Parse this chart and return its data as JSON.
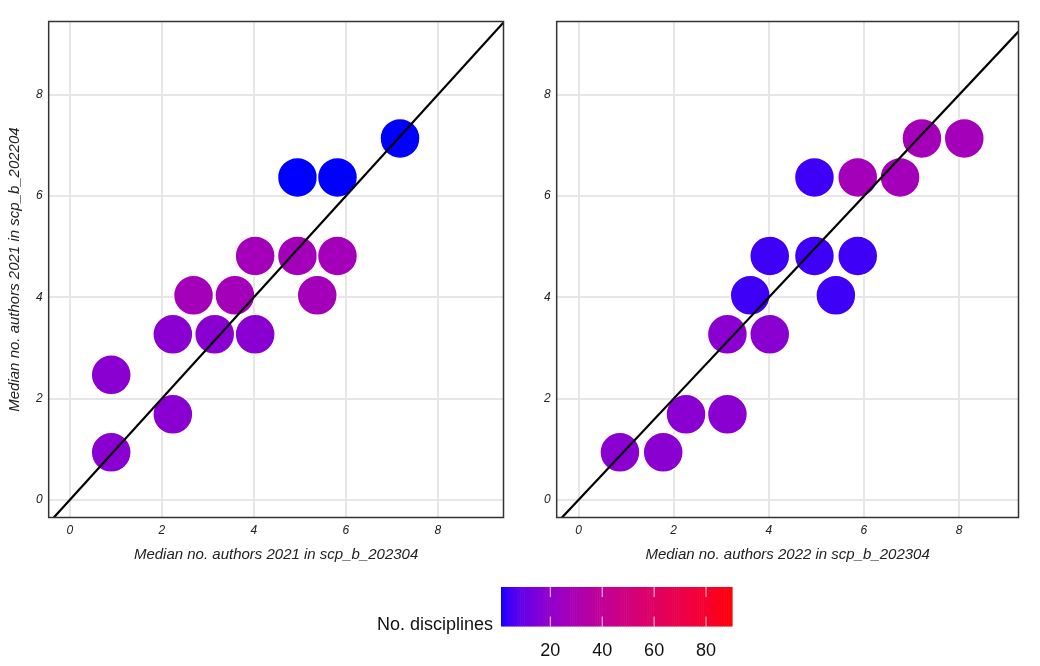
{
  "chart_data": [
    {
      "type": "scatter",
      "xlabel": "Median no. authors 2021 in scp_b_202304",
      "ylabel": "Median no. authors 2021 in scp_b_202204",
      "clabel": "No. disciplines",
      "clim": [
        1,
        90
      ],
      "cticks": [
        20,
        40,
        60,
        80
      ],
      "xlim": [
        -0.46,
        9.43
      ],
      "ylim": [
        -0.35,
        9.45
      ],
      "xticks": [
        0,
        2,
        4,
        6,
        8
      ],
      "yticks": [
        0,
        2,
        4,
        6,
        8
      ],
      "grid": true,
      "legend": false,
      "series": [
        {
          "marker": "circle",
          "x": [
            0.9,
            0.9,
            2.24,
            2.24,
            3.15,
            4.03,
            2.69,
            3.59,
            4.03,
            4.95,
            5.82,
            5.38,
            4.95,
            5.82,
            7.18
          ],
          "values": [
            2.47,
            0.94,
            1.69,
            3.27,
            3.27,
            3.27,
            4.04,
            4.04,
            4.82,
            4.82,
            4.82,
            4.04,
            6.37,
            6.37,
            7.14
          ],
          "colors": [
            "#8a00d1",
            "#8a00d1",
            "#8a00d1",
            "#8a00d1",
            "#8a00d1",
            "#8a00d1",
            "#a400b9",
            "#a400b9",
            "#a400b9",
            "#a400b9",
            "#a400b9",
            "#a400b9",
            "#0000ff",
            "#0000ff",
            "#0000ff"
          ]
        },
        {
          "type": "line",
          "color": "#000000",
          "x": [
            -0.35,
            9.43
          ],
          "values": [
            -0.35,
            9.43
          ]
        }
      ]
    },
    {
      "type": "scatter",
      "xlabel": "Median no. authors 2022 in scp_b_202304",
      "xlim": [
        -0.46,
        9.25
      ],
      "ylim": [
        -0.35,
        9.45
      ],
      "xticks": [
        0,
        2,
        4,
        6,
        8
      ],
      "yticks": [
        0,
        2,
        4,
        6,
        8
      ],
      "grid": true,
      "legend": false,
      "series": [
        {
          "marker": "circle",
          "x": [
            0.87,
            1.78,
            2.26,
            3.13,
            3.13,
            4.02,
            3.61,
            4.02,
            4.96,
            5.87,
            5.41,
            4.96,
            5.87,
            6.76,
            7.22,
            8.11
          ],
          "values": [
            0.94,
            0.94,
            1.69,
            1.69,
            3.27,
            3.27,
            4.04,
            4.82,
            4.82,
            4.82,
            4.04,
            6.37,
            6.37,
            6.37,
            7.14,
            7.14
          ],
          "colors": [
            "#8a00d1",
            "#8a00d1",
            "#8a00d1",
            "#8a00d1",
            "#8a00d1",
            "#8a00d1",
            "#3e00f7",
            "#3e00f7",
            "#3e00f7",
            "#3e00f7",
            "#3e00f7",
            "#3e00f7",
            "#a400b9",
            "#a400b9",
            "#a400b9",
            "#a400b9"
          ]
        },
        {
          "type": "line",
          "color": "#000000",
          "x": [
            -0.35,
            9.25
          ],
          "values": [
            -0.35,
            9.25
          ]
        }
      ]
    }
  ]
}
